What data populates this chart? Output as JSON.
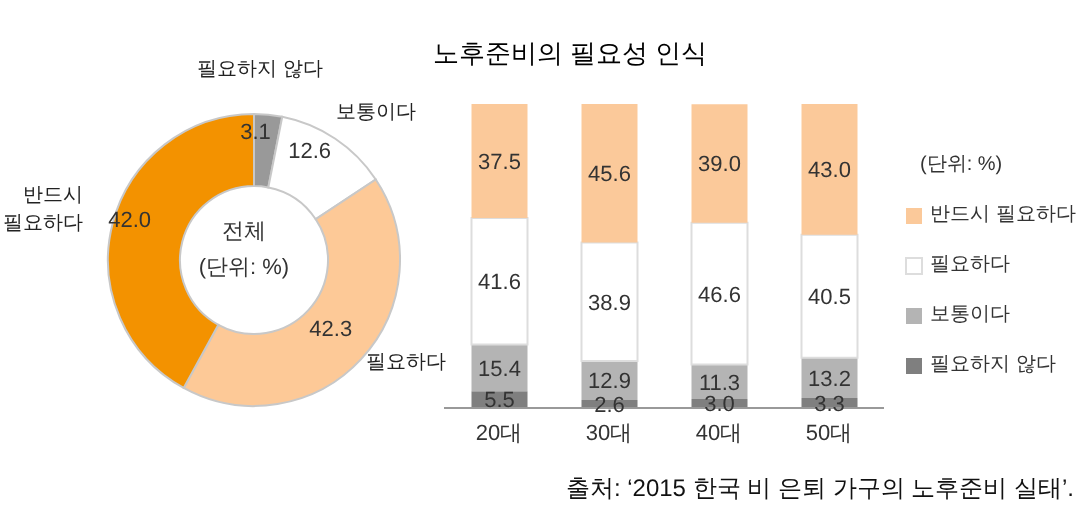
{
  "chart_data": [
    {
      "type": "donut",
      "categories": [
        "필요하지 않다",
        "보통이다",
        "필요하다",
        "반드시 필요하다"
      ],
      "values": [
        3.1,
        12.6,
        42.3,
        42.0
      ],
      "value_labels": [
        "3.1",
        "12.6",
        "42.3",
        "42.0"
      ],
      "colors": [
        "#999999",
        "#ffffff",
        "#fdc997",
        "#f39200"
      ],
      "annotations": [
        "전체",
        "(단위: %)"
      ]
    },
    {
      "type": "bar",
      "title": "노후준비의 필요성 인식",
      "stacked": true,
      "categories": [
        "20대",
        "30대",
        "40대",
        "50대"
      ],
      "series": [
        {
          "name": "필요하지 않다",
          "color": "#7f7f7f",
          "values": [
            5.5,
            2.6,
            3.0,
            3.3
          ],
          "value_labels": [
            "5.5",
            "2.6",
            "3.0",
            "3.3"
          ]
        },
        {
          "name": "보통이다",
          "color": "#b4b4b4",
          "values": [
            15.4,
            12.9,
            11.3,
            13.2
          ],
          "value_labels": [
            "15.4",
            "12.9",
            "11.3",
            "13.2"
          ]
        },
        {
          "name": "필요하다",
          "color": "#ffffff",
          "values": [
            41.6,
            38.9,
            46.6,
            40.5
          ],
          "value_labels": [
            "41.6",
            "38.9",
            "46.6",
            "40.5"
          ]
        },
        {
          "name": "반드시 필요하다",
          "color": "#fbc99a",
          "values": [
            37.5,
            45.6,
            39.0,
            43.0
          ],
          "value_labels": [
            "37.5",
            "45.6",
            "39.0",
            "43.0"
          ]
        }
      ],
      "legend": "right",
      "legend_title": "(단위: %)",
      "annotations": [
        "출처: ‘2015 한국 비 은퇴 가구의 노후준비 실태’."
      ]
    }
  ]
}
